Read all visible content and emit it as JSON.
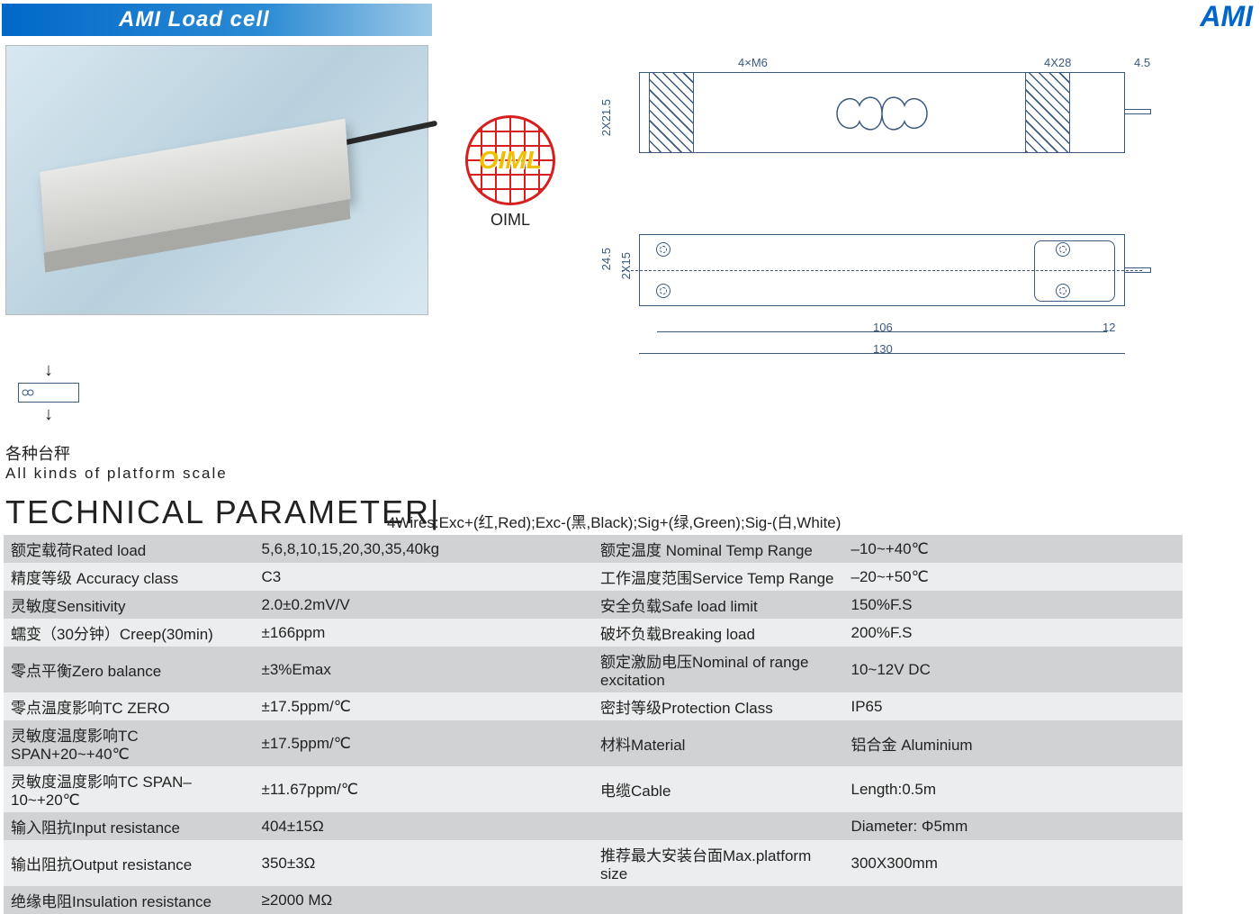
{
  "header": {
    "title": "AMI   Load cell",
    "brand": "AMI"
  },
  "oiml": {
    "acronym": "OIML",
    "label": "OIML"
  },
  "drawing": {
    "side": {
      "top_hole_note_left": "4×M6",
      "top_hole_note_right": "4X28",
      "right_dim": "4.5",
      "height_dim": "2X21.5"
    },
    "top": {
      "vdim1": "24.5",
      "vdim2": "2X15",
      "hdim_inner": "106",
      "hdim_right": "12",
      "hdim_outer": "130"
    },
    "colors": {
      "line": "#3a5a80"
    }
  },
  "application": {
    "cn": "各种台秤",
    "en": "All kinds of platform scale"
  },
  "tech_title": "TECHNICAL PARAMETER|",
  "wires_note": "4Wires:Exc+(红,Red);Exc-(黑,Black);Sig+(绿,Green);Sig-(白,White)",
  "table": {
    "row_bg_odd": "#d0d2d4",
    "row_bg_even": "#ecedee",
    "left": [
      {
        "label": "额定载荷Rated load",
        "value": "5,6,8,10,15,20,30,35,40kg"
      },
      {
        "label": "精度等级 Accuracy class",
        "value": "C3"
      },
      {
        "label": "灵敏度Sensitivity",
        "value": "2.0±0.2mV/V"
      },
      {
        "label": "蠕变（30分钟）Creep(30min)",
        "value": "±166ppm"
      },
      {
        "label": "零点平衡Zero balance",
        "value": "±3%Emax"
      },
      {
        "label": "零点温度影响TC ZERO",
        "value": "±17.5ppm/℃"
      },
      {
        "label": "灵敏度温度影响TC SPAN+20~+40℃",
        "value": "±17.5ppm/℃"
      },
      {
        "label": "灵敏度温度影响TC SPAN–10~+20℃",
        "value": "±11.67ppm/℃"
      },
      {
        "label": "输入阻抗Input resistance",
        "value": "404±15Ω"
      },
      {
        "label": "输出阻抗Output resistance",
        "value": "350±3Ω"
      },
      {
        "label": "绝缘电阻Insulation resistance",
        "value": "≥2000 MΩ"
      }
    ],
    "right": [
      {
        "label": "额定温度 Nominal Temp Range",
        "value": "–10~+40℃"
      },
      {
        "label": "工作温度范围Service Temp Range",
        "value": "–20~+50℃"
      },
      {
        "label": "安全负载Safe load limit",
        "value": "150%F.S"
      },
      {
        "label": "破坏负载Breaking load",
        "value": "200%F.S"
      },
      {
        "label": "额定激励电压Nominal of range excitation",
        "value": "10~12V DC"
      },
      {
        "label": "密封等级Protection Class",
        "value": "IP65"
      },
      {
        "label": "材料Material",
        "value": "铝合金 Aluminium"
      },
      {
        "label": "电缆Cable",
        "value": "Length:0.5m"
      },
      {
        "label": "",
        "value": "Diameter: Φ5mm"
      },
      {
        "label": "推荐最大安装台面Max.platform size",
        "value": "300X300mm"
      },
      {
        "label": "",
        "value": ""
      }
    ]
  }
}
